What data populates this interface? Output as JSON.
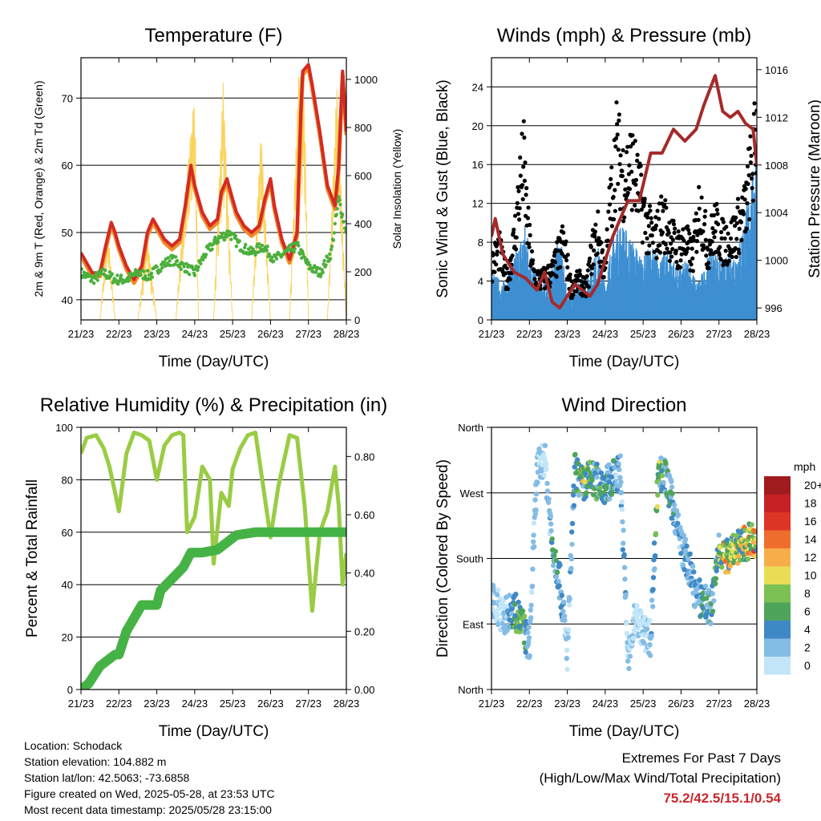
{
  "chart_data": [
    {
      "type": "line",
      "title": "Temperature (F)",
      "xlabel": "Time (Day/UTC)",
      "ylabel": "2m & 9m T (Red, Orange) & 2m Td (Green)",
      "ylabel_right": "Solar Insolation (Yellow)",
      "x_ticks": [
        "21/23",
        "22/23",
        "23/23",
        "24/23",
        "25/23",
        "26/23",
        "27/23",
        "28/23"
      ],
      "ylim": [
        37,
        76
      ],
      "y_ticks": [
        40,
        50,
        60,
        70
      ],
      "ylim_right": [
        0,
        1090
      ],
      "y_ticks_right": [
        0,
        200,
        400,
        600,
        800,
        1000
      ],
      "grid": true,
      "series": [
        {
          "name": "2m T",
          "color": "#d42a23",
          "x": [
            0,
            0.1,
            0.3,
            0.5,
            0.65,
            0.8,
            0.9,
            1.0,
            1.2,
            1.4,
            1.6,
            1.75,
            1.9,
            2.0,
            2.2,
            2.4,
            2.6,
            2.75,
            2.9,
            3.0,
            3.2,
            3.4,
            3.6,
            3.7,
            3.85,
            4.0,
            4.1,
            4.3,
            4.5,
            4.7,
            4.85,
            5.0,
            5.1,
            5.3,
            5.5,
            5.7,
            5.8,
            5.85,
            6.0,
            6.1,
            6.3,
            6.5,
            6.7,
            6.8,
            6.9,
            7.0
          ],
          "values": [
            47,
            46,
            44,
            44,
            48,
            51.5,
            50,
            48,
            45,
            43,
            45,
            50,
            52,
            51,
            49,
            48,
            49,
            54,
            60,
            57,
            53,
            51,
            52,
            56,
            58,
            55,
            53,
            51,
            50,
            51,
            55,
            58,
            54,
            49,
            46,
            50,
            68,
            74,
            75,
            72,
            65,
            57,
            54,
            60,
            74,
            65
          ]
        },
        {
          "name": "9m T",
          "color": "#f08a28",
          "x": [
            0,
            0.1,
            0.3,
            0.5,
            0.65,
            0.8,
            0.9,
            1.0,
            1.2,
            1.4,
            1.6,
            1.75,
            1.9,
            2.0,
            2.2,
            2.4,
            2.6,
            2.75,
            2.9,
            3.0,
            3.2,
            3.4,
            3.6,
            3.7,
            3.85,
            4.0,
            4.1,
            4.3,
            4.5,
            4.7,
            4.85,
            5.0,
            5.1,
            5.3,
            5.5,
            5.7,
            5.8,
            5.85,
            6.0,
            6.1,
            6.3,
            6.5,
            6.7,
            6.8,
            6.9,
            7.0
          ],
          "values": [
            46.5,
            45.5,
            43.5,
            43.5,
            47.5,
            51,
            49.5,
            47.5,
            44.5,
            42.5,
            44.5,
            49.5,
            51.5,
            50.5,
            48.5,
            47.5,
            48.5,
            53.5,
            59.5,
            56.5,
            52.5,
            50.5,
            51.5,
            55.5,
            57.5,
            54.5,
            52.5,
            50.5,
            49.5,
            50.5,
            54.5,
            57.5,
            53.5,
            48.5,
            45.5,
            49.5,
            67.5,
            73.5,
            74.5,
            71.5,
            64.5,
            56.5,
            53.5,
            59.5,
            73.5,
            64.5
          ]
        },
        {
          "name": "2m Td",
          "color": "#4caf3c",
          "x": [
            0,
            0.3,
            0.6,
            0.9,
            1.2,
            1.5,
            1.8,
            2.1,
            2.4,
            2.7,
            3.0,
            3.3,
            3.6,
            3.9,
            4.2,
            4.5,
            4.8,
            5.1,
            5.4,
            5.7,
            6.0,
            6.3,
            6.6,
            6.8,
            7.0
          ],
          "values": [
            44,
            43,
            44,
            43,
            43,
            44,
            43.5,
            45,
            46,
            45,
            44,
            47,
            49,
            50,
            48,
            47,
            48,
            46,
            47,
            48,
            45,
            44,
            47,
            55,
            50
          ]
        },
        {
          "name": "Solar Insolation",
          "color": "#fbd35a",
          "axis": "right",
          "x": [
            0,
            0.5,
            0.7,
            0.9,
            1.5,
            1.75,
            2.0,
            2.5,
            2.75,
            3.0,
            3.1,
            3.5,
            3.75,
            4.0,
            4.5,
            4.75,
            5.0,
            5.5,
            5.75,
            5.9,
            6.0,
            6.5,
            6.75,
            7.0
          ],
          "values": [
            0,
            0,
            400,
            0,
            0,
            350,
            0,
            0,
            550,
            950,
            0,
            0,
            1000,
            0,
            0,
            800,
            0,
            0,
            1060,
            900,
            0,
            0,
            1000,
            0
          ]
        }
      ]
    },
    {
      "type": "scatter",
      "title": "Winds (mph) & Pressure (mb)",
      "xlabel": "Time (Day/UTC)",
      "ylabel": "Sonic Wind & Gust (Blue, Black)",
      "ylabel_right": "Station Pressure (Maroon)",
      "x_ticks": [
        "21/23",
        "22/23",
        "23/23",
        "24/23",
        "25/23",
        "26/23",
        "27/23",
        "28/23"
      ],
      "ylim": [
        0,
        27
      ],
      "y_ticks": [
        0,
        4,
        8,
        12,
        16,
        20,
        24
      ],
      "ylim_right": [
        995,
        1017
      ],
      "y_ticks_right": [
        996,
        1000,
        1004,
        1008,
        1012,
        1016
      ],
      "grid": true,
      "series": [
        {
          "name": "Sonic Wind",
          "color": "#3e8fd2",
          "x": [
            0,
            0.3,
            0.7,
            0.9,
            1.2,
            1.5,
            1.8,
            2.0,
            2.3,
            2.6,
            2.8,
            3.0,
            3.2,
            3.4,
            3.6,
            3.8,
            4.0,
            4.2,
            4.5,
            4.7,
            4.9,
            5.2,
            5.4,
            5.6,
            5.8,
            6.1,
            6.3,
            6.5,
            6.7,
            6.9,
            7.0
          ],
          "values": [
            4,
            3,
            6,
            8,
            3,
            3,
            7,
            2,
            3,
            4,
            6,
            3,
            7,
            8,
            7,
            6,
            5,
            6,
            5,
            6,
            4,
            5,
            3,
            4,
            6,
            5,
            5,
            6,
            9,
            12,
            16
          ]
        },
        {
          "name": "Gust",
          "color": "#000000",
          "x": [
            0,
            0.2,
            0.4,
            0.6,
            0.75,
            0.85,
            0.95,
            1.1,
            1.3,
            1.6,
            1.9,
            2.1,
            2.3,
            2.5,
            2.7,
            2.8,
            3.0,
            3.1,
            3.3,
            3.5,
            3.7,
            3.9,
            4.1,
            4.3,
            4.5,
            4.7,
            4.9,
            5.1,
            5.3,
            5.5,
            5.7,
            5.9,
            6.1,
            6.3,
            6.5,
            6.7,
            6.8,
            6.9,
            7.0
          ],
          "values": [
            7,
            9,
            5,
            10,
            17,
            20,
            12,
            6,
            5,
            6,
            10,
            4,
            5,
            4,
            10,
            11,
            6,
            13,
            22,
            18,
            20,
            16,
            12,
            10,
            13,
            11,
            9,
            10,
            8,
            15,
            9,
            12,
            10,
            10,
            12,
            14,
            18,
            20,
            25
          ]
        },
        {
          "name": "Station Pressure",
          "color": "#a52a2a",
          "axis": "right",
          "x": [
            0,
            0.1,
            0.3,
            0.6,
            0.9,
            1.2,
            1.4,
            1.6,
            1.8,
            2.2,
            2.6,
            2.8,
            3.2,
            3.6,
            3.9,
            4.2,
            4.5,
            4.8,
            5.1,
            5.4,
            5.6,
            5.9,
            6.1,
            6.3,
            6.5,
            6.7,
            6.9,
            7.0
          ],
          "values": [
            1002,
            1003.5,
            1000.5,
            999,
            998.5,
            997.5,
            999,
            996.5,
            996,
            998,
            997,
            998,
            1002,
            1005,
            1005,
            1009,
            1009,
            1011,
            1010,
            1011,
            1013,
            1015.5,
            1012.5,
            1012,
            1012.5,
            1011.5,
            1011,
            1008
          ]
        }
      ]
    },
    {
      "type": "line",
      "title": "Relative Humidity (%) & Precipitation (in)",
      "xlabel": "Time (Day/UTC)",
      "ylabel": "Percent & Total Rainfall",
      "x_ticks": [
        "21/23",
        "22/23",
        "23/23",
        "24/23",
        "25/23",
        "26/23",
        "27/23",
        "28/23"
      ],
      "ylim": [
        0,
        100
      ],
      "y_ticks": [
        0,
        20,
        40,
        60,
        80,
        100
      ],
      "ylim_right": [
        0,
        0.9
      ],
      "y_ticks_right": [
        "0.00",
        "0.20",
        "0.40",
        "0.60",
        "0.80"
      ],
      "grid": true,
      "series": [
        {
          "name": "Relative Humidity",
          "color": "#99cc44",
          "x": [
            0,
            0.15,
            0.4,
            0.6,
            0.75,
            0.9,
            1.0,
            1.2,
            1.4,
            1.6,
            1.8,
            2.0,
            2.2,
            2.4,
            2.6,
            2.7,
            2.8,
            3.0,
            3.2,
            3.4,
            3.5,
            3.7,
            3.9,
            4.0,
            4.2,
            4.4,
            4.6,
            4.8,
            5.0,
            5.2,
            5.5,
            5.7,
            5.9,
            6.1,
            6.3,
            6.5,
            6.7,
            6.8,
            6.9,
            7.0
          ],
          "values": [
            90,
            96,
            97,
            92,
            85,
            75,
            68,
            90,
            98,
            97,
            95,
            80,
            93,
            97,
            98,
            97,
            60,
            66,
            85,
            80,
            48,
            75,
            70,
            84,
            92,
            97,
            98,
            78,
            58,
            77,
            97,
            96,
            70,
            30,
            60,
            68,
            85,
            70,
            40,
            52
          ]
        },
        {
          "name": "Total Precipitation",
          "color": "#45b245",
          "axis": "right",
          "x": [
            0,
            0.2,
            0.3,
            0.5,
            0.9,
            1.0,
            1.2,
            1.6,
            1.7,
            2.0,
            2.1,
            2.7,
            2.9,
            3.2,
            3.6,
            3.9,
            4.1,
            4.6,
            7.0
          ],
          "values": [
            0,
            0.02,
            0.04,
            0.08,
            0.12,
            0.12,
            0.2,
            0.29,
            0.29,
            0.29,
            0.34,
            0.42,
            0.47,
            0.47,
            0.48,
            0.51,
            0.53,
            0.54,
            0.54
          ]
        }
      ]
    },
    {
      "type": "scatter",
      "title": "Wind Direction",
      "xlabel": "Time (Day/UTC)",
      "ylabel": "Direction (Colored By Speed)",
      "x_ticks": [
        "21/23",
        "22/23",
        "23/23",
        "24/23",
        "25/23",
        "26/23",
        "27/23",
        "28/23"
      ],
      "ylim": [
        0,
        360
      ],
      "y_ticks": [
        "North",
        "East",
        "South",
        "West",
        "North"
      ],
      "legend_title": "mph",
      "legend_labels": [
        "20+",
        "18",
        "16",
        "14",
        "12",
        "10",
        "8",
        "6",
        "4",
        "2",
        "0"
      ],
      "legend_colors": [
        "#9f1b1d",
        "#c52125",
        "#de3426",
        "#f06e2d",
        "#f7ae4a",
        "#e7de55",
        "#7cc153",
        "#4ea45a",
        "#3f88c6",
        "#84bce5",
        "#c2e6f8"
      ],
      "legend_placement": "right",
      "grid": true,
      "series": [
        {
          "name": "Direction",
          "x": [
            0.1,
            0.3,
            0.6,
            0.8,
            1.0,
            1.2,
            1.4,
            1.6,
            1.8,
            2.0,
            2.2,
            2.4,
            2.6,
            2.8,
            3.0,
            3.2,
            3.4,
            3.6,
            3.8,
            4.0,
            4.2,
            4.4,
            4.6,
            4.8,
            5.0,
            5.2,
            5.4,
            5.6,
            5.8,
            6.0,
            6.2,
            6.4,
            6.6,
            6.8,
            7.0
          ],
          "values": [
            120,
            100,
            110,
            90,
            60,
            300,
            320,
            200,
            150,
            50,
            300,
            280,
            290,
            285,
            280,
            290,
            300,
            40,
            100,
            80,
            70,
            300,
            290,
            250,
            200,
            170,
            130,
            120,
            110,
            195,
            180,
            200,
            195,
            205,
            195
          ],
          "speeds": [
            3,
            2,
            7,
            8,
            3,
            3,
            2,
            5,
            6,
            2,
            6,
            10,
            8,
            7,
            6,
            5,
            4,
            3,
            2,
            2,
            3,
            9,
            6,
            5,
            4,
            5,
            4,
            6,
            5,
            8,
            12,
            10,
            11,
            12,
            13
          ]
        }
      ]
    }
  ],
  "info": {
    "location": "Location: Schodack",
    "elevation": "Station elevation: 104.882 m",
    "latlon": "Station lat/lon: 42.5063; -73.6858",
    "created": "Figure created on Wed, 2025-05-28, at 23:53 UTC",
    "recent": "Most recent data timestamp: 2025/05/28 23:15:00"
  },
  "extremes": {
    "title": "Extremes For Past 7 Days",
    "subtitle": "(High/Low/Max Wind/Total Precipitation)",
    "values": "75.2/42.5/15.1/0.54"
  }
}
